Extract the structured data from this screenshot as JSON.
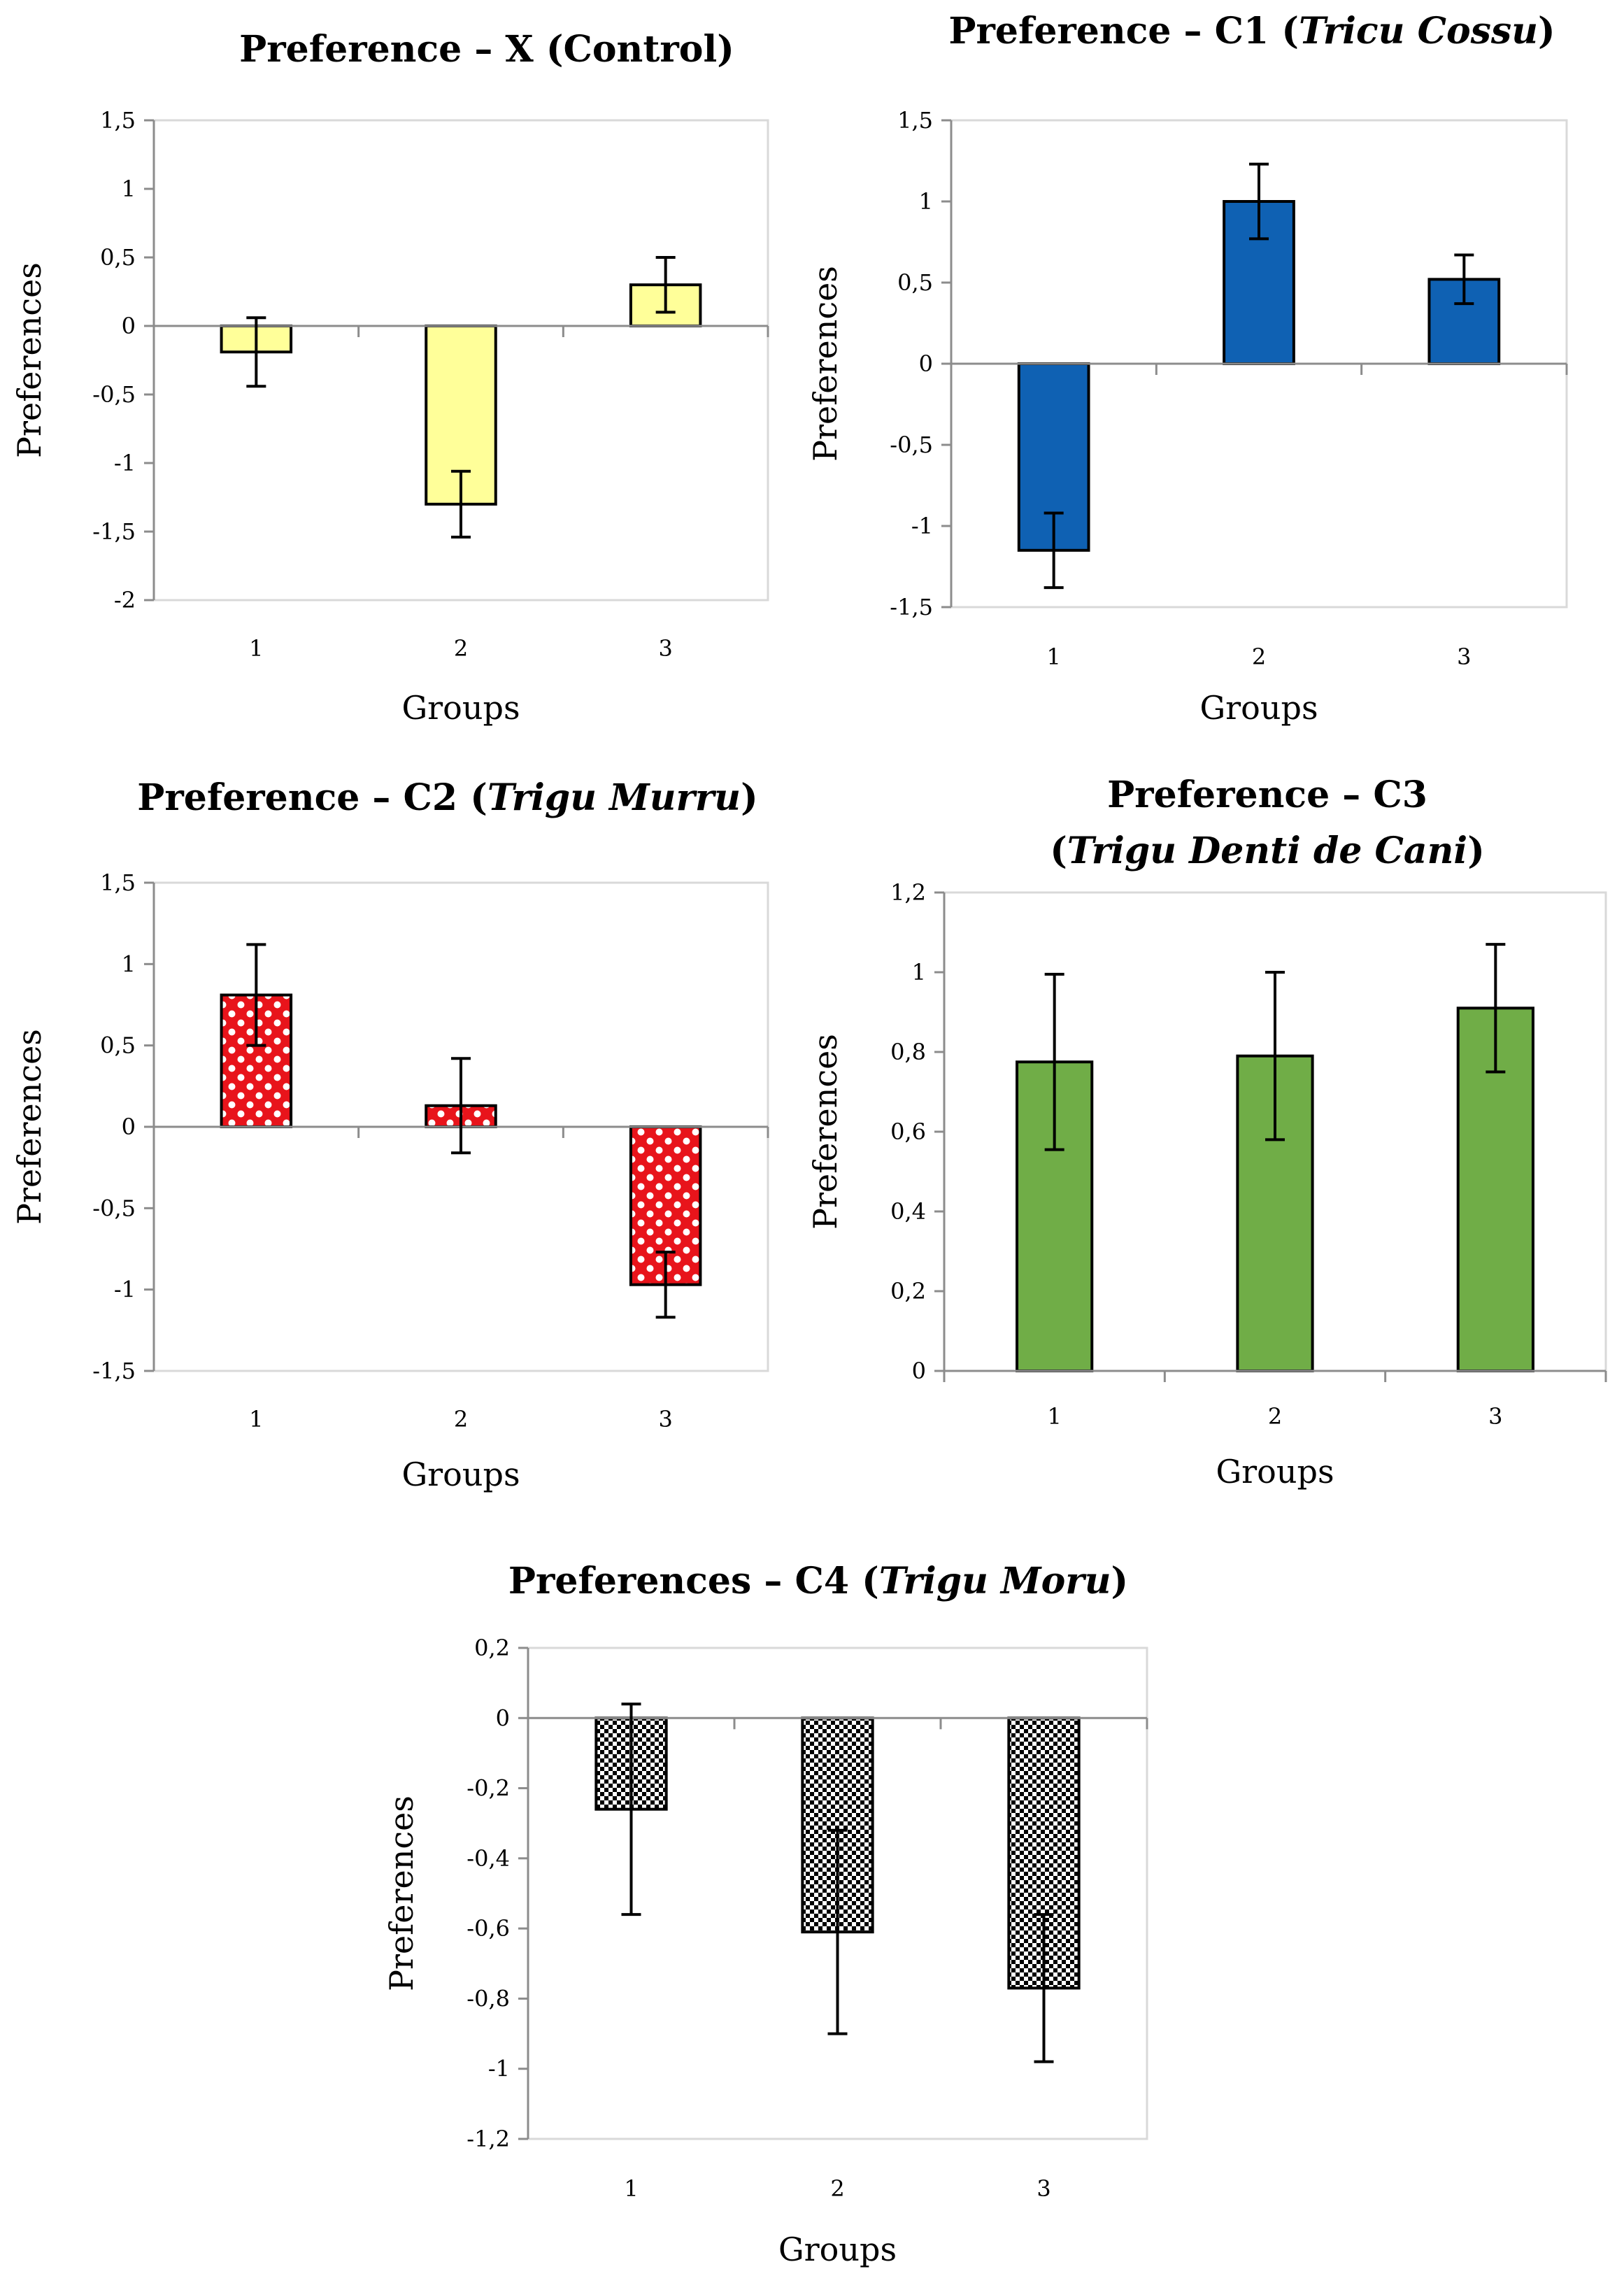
{
  "chart_data": [
    {
      "id": "x",
      "type": "bar",
      "title": "Preference – X (Control)",
      "title_parts": [
        {
          "text": "Preference – X (Control)",
          "italic": false
        }
      ],
      "xlabel": "Groups",
      "ylabel": "Preferences",
      "categories": [
        "1",
        "2",
        "3"
      ],
      "values": [
        -0.19,
        -1.3,
        0.3
      ],
      "errors": [
        0.25,
        0.24,
        0.2
      ],
      "ylim": [
        -2,
        1.5
      ],
      "ytick_step": 0.5,
      "ytick_labels": [
        "-2",
        "-1,5",
        "-1",
        "-0,5",
        "0",
        "0,5",
        "1",
        "1,5"
      ],
      "fill": "#ffff99",
      "pattern": "none"
    },
    {
      "id": "c1",
      "type": "bar",
      "title": "Preference – C1 (Tricu Cossu)",
      "title_parts": [
        {
          "text": "Preference – C1 (",
          "italic": false
        },
        {
          "text": "Tricu Cossu",
          "italic": true
        },
        {
          "text": ")",
          "italic": false
        }
      ],
      "xlabel": "Groups",
      "ylabel": "Preferences",
      "categories": [
        "1",
        "2",
        "3"
      ],
      "values": [
        -1.15,
        1.0,
        0.52
      ],
      "errors": [
        0.23,
        0.23,
        0.15
      ],
      "ylim": [
        -1.5,
        1.5
      ],
      "ytick_step": 0.5,
      "ytick_labels": [
        "-1,5",
        "-1",
        "-0,5",
        "0",
        "0,5",
        "1",
        "1,5"
      ],
      "fill": "#0f61b3",
      "pattern": "none"
    },
    {
      "id": "c2",
      "type": "bar",
      "title": "Preference – C2 (Trigu Murru)",
      "title_parts": [
        {
          "text": "Preference – C2 (",
          "italic": false
        },
        {
          "text": "Trigu Murru",
          "italic": true
        },
        {
          "text": ")",
          "italic": false
        }
      ],
      "xlabel": "Groups",
      "ylabel": "Preferences",
      "categories": [
        "1",
        "2",
        "3"
      ],
      "values": [
        0.81,
        0.13,
        -0.97
      ],
      "errors": [
        0.31,
        0.29,
        0.2
      ],
      "ylim": [
        -1.5,
        1.5
      ],
      "ytick_step": 0.5,
      "ytick_labels": [
        "-1,5",
        "-1",
        "-0,5",
        "0",
        "0,5",
        "1",
        "1,5"
      ],
      "fill": "#e8141b",
      "pattern": "dots"
    },
    {
      "id": "c3",
      "type": "bar",
      "title": "Preference – C3 (Trigu Denti de Cani)",
      "title_parts": [
        {
          "text": "Preference – C3",
          "italic": false
        },
        {
          "text": "(",
          "italic": false,
          "newline": true
        },
        {
          "text": "Trigu Denti de Cani",
          "italic": true
        },
        {
          "text": ")",
          "italic": false
        }
      ],
      "xlabel": "Groups",
      "ylabel": "Preferences",
      "categories": [
        "1",
        "2",
        "3"
      ],
      "values": [
        0.775,
        0.79,
        0.91
      ],
      "errors": [
        0.22,
        0.21,
        0.16
      ],
      "ylim": [
        0,
        1.2
      ],
      "ytick_step": 0.2,
      "ytick_labels": [
        "0",
        "0,2",
        "0,4",
        "0,6",
        "0,8",
        "1",
        "1,2"
      ],
      "fill": "#70ad47",
      "pattern": "none"
    },
    {
      "id": "c4",
      "type": "bar",
      "title": "Preferences – C4 (Trigu Moru)",
      "title_parts": [
        {
          "text": "Preferences – C4 (",
          "italic": false
        },
        {
          "text": "Trigu Moru",
          "italic": true
        },
        {
          "text": ")",
          "italic": false
        }
      ],
      "xlabel": "Groups",
      "ylabel": "Preferences",
      "categories": [
        "1",
        "2",
        "3"
      ],
      "values": [
        -0.26,
        -0.61,
        -0.77
      ],
      "errors": [
        0.3,
        0.29,
        0.21
      ],
      "ylim": [
        -1.2,
        0.2
      ],
      "ytick_step": 0.2,
      "ytick_labels": [
        "-1,2",
        "-1",
        "-0,8",
        "-0,6",
        "-0,4",
        "-0,2",
        "0",
        "0,2"
      ],
      "fill": "#ffffff",
      "pattern": "checker"
    }
  ]
}
